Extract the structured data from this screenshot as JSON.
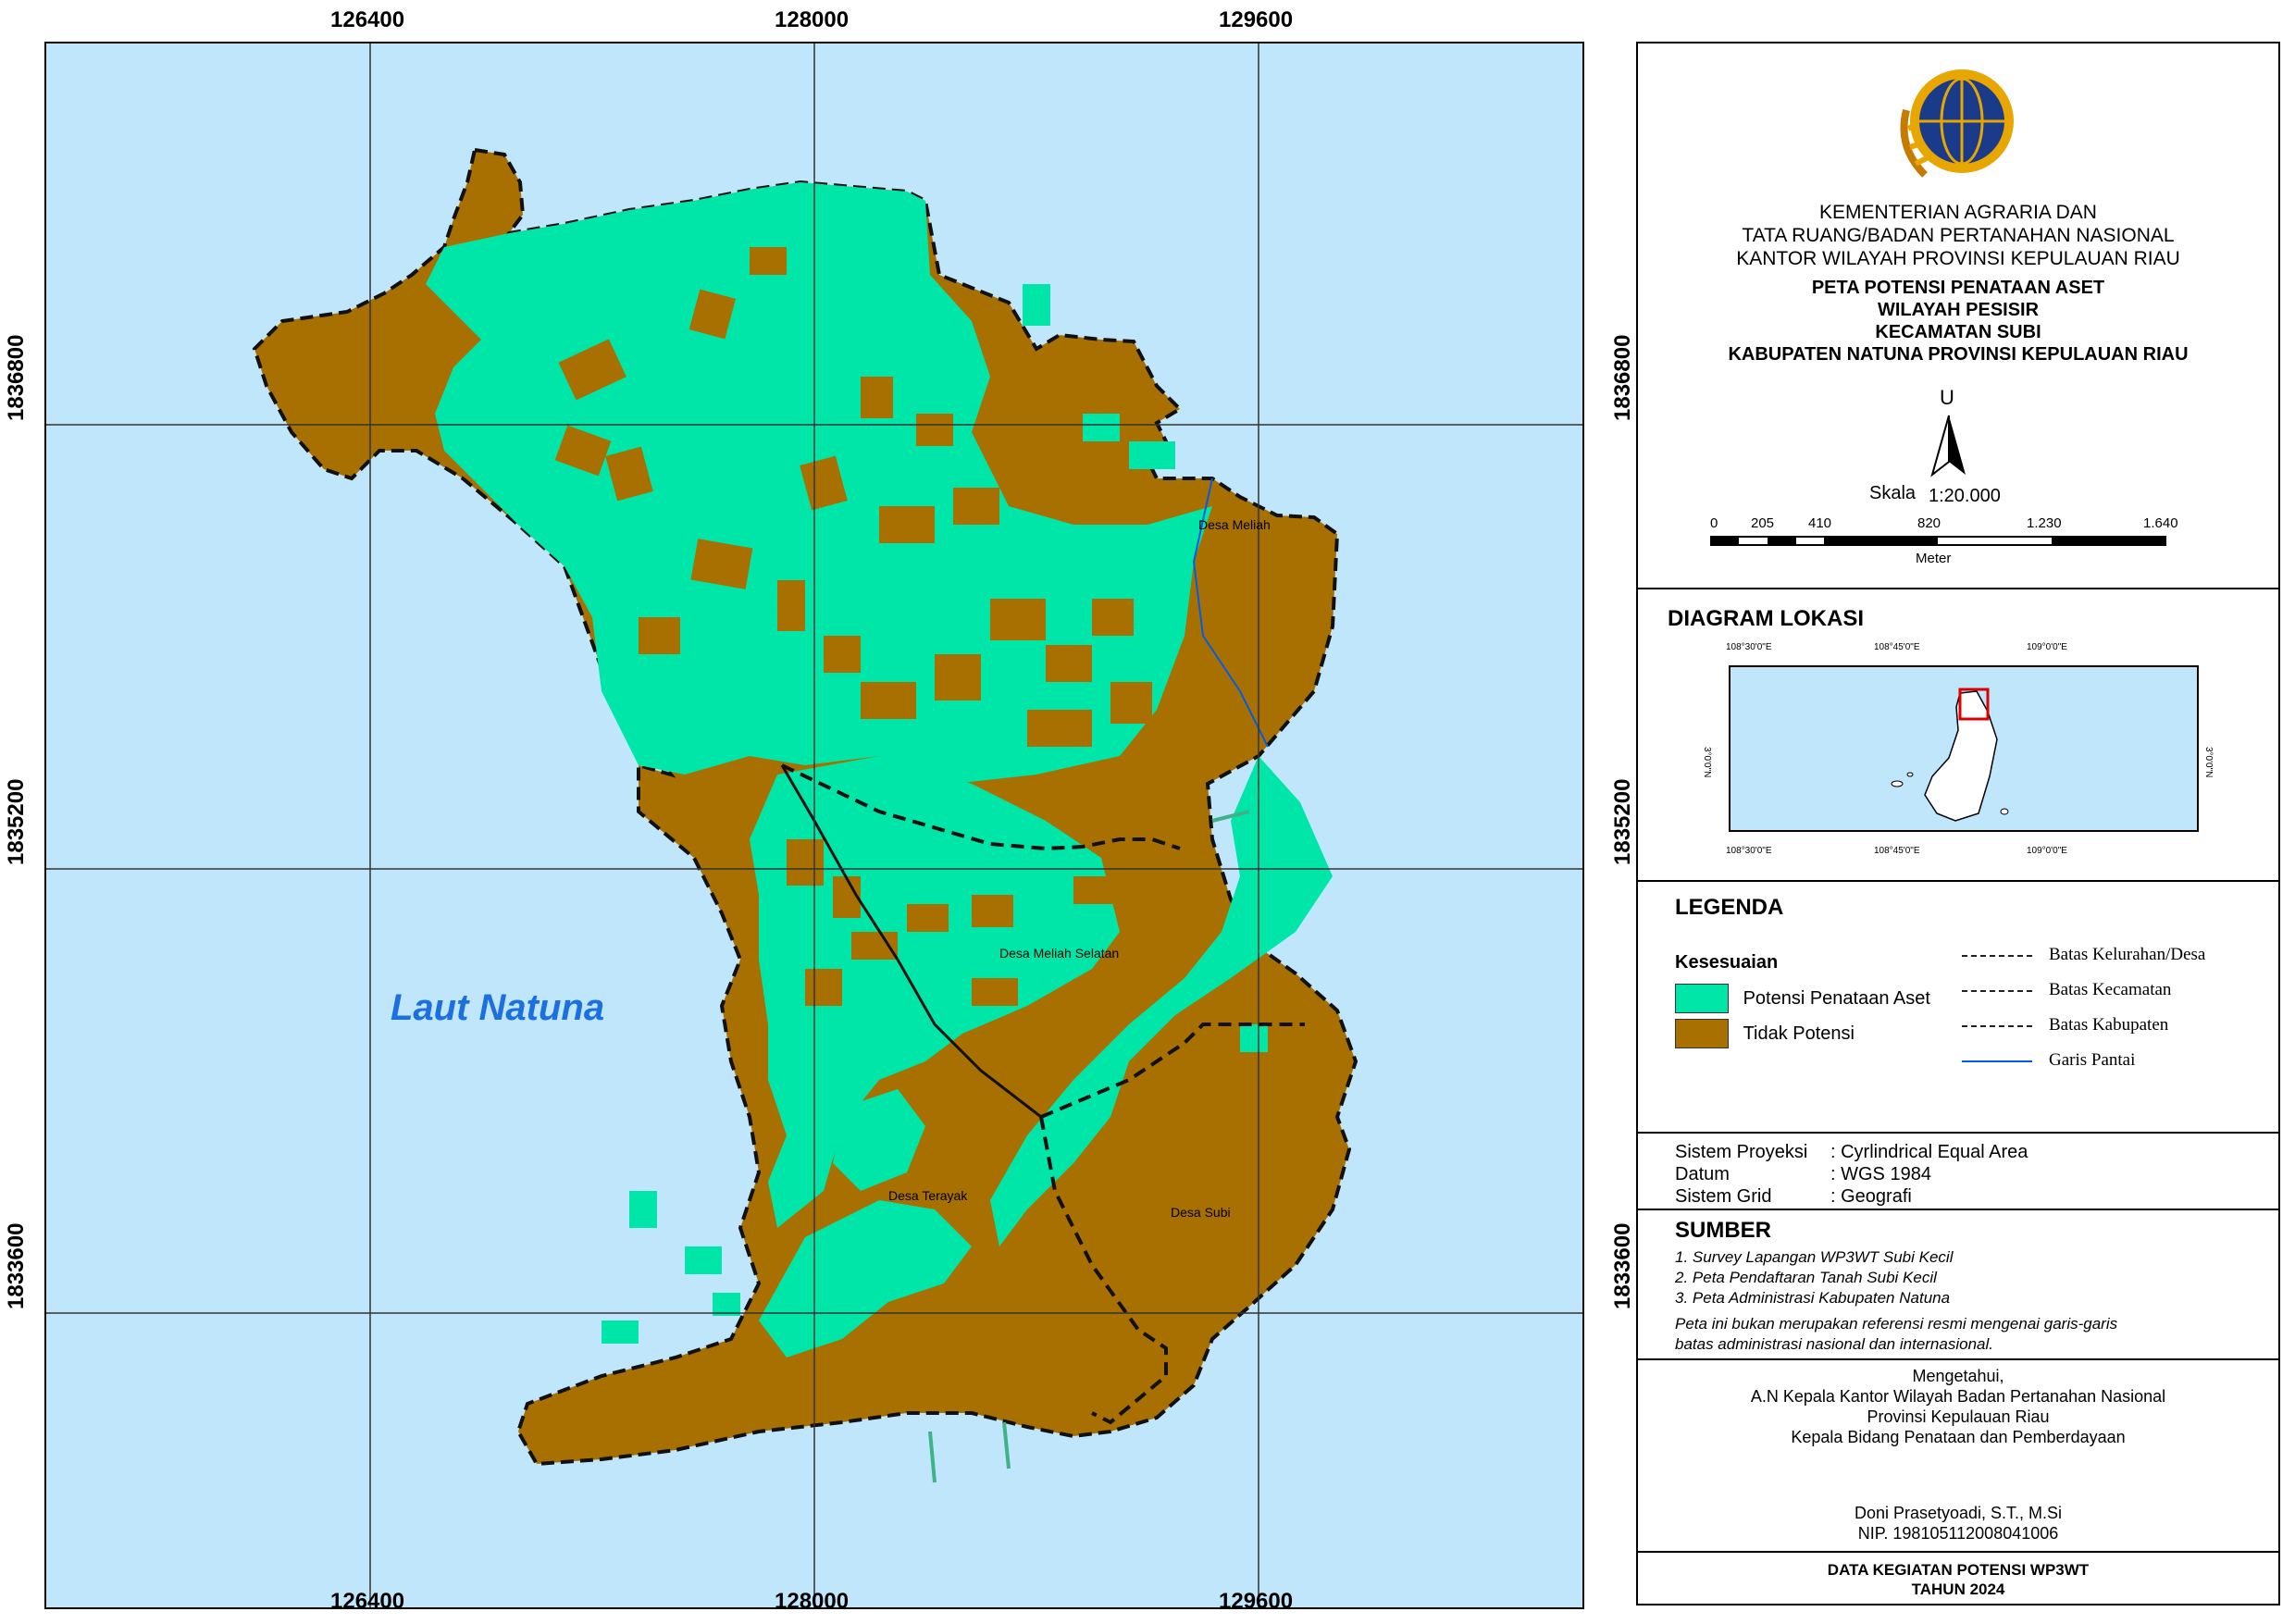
{
  "map": {
    "sea_label": "Laut Natuna",
    "village_labels": [
      "Desa Meliah",
      "Desa Meliah Selatan",
      "Desa Terayak",
      "Desa Subi"
    ],
    "x_ticks": [
      "126400",
      "128000",
      "129600"
    ],
    "y_ticks": [
      "1836800",
      "1835200",
      "1833600"
    ],
    "colors": {
      "sea": "#bfe6fb",
      "potensi": "#00e6a8",
      "tidak": "#a87000",
      "coast": "#005ce6"
    }
  },
  "header": {
    "logo_icon": "bpn-logo-icon",
    "org_lines": [
      "KEMENTERIAN AGRARIA DAN",
      "TATA RUANG/BADAN PERTANAHAN NASIONAL",
      "KANTOR WILAYAH PROVINSI KEPULAUAN  RIAU"
    ],
    "title_lines": [
      "PETA POTENSI PENATAAN ASET",
      "WILAYAH PESISIR",
      "KECAMATAN SUBI",
      "KABUPATEN NATUNA PROVINSI KEPULAUAN RIAU"
    ],
    "north_label": "U",
    "north_icon": "north-arrow-icon",
    "scale_label": "Skala",
    "scale_value": "1:20.000",
    "scale_ticks": [
      "0",
      "205",
      "410",
      "820",
      "1.230",
      "1.640"
    ],
    "scale_unit": "Meter"
  },
  "location_diagram": {
    "title": "DIAGRAM LOKASI",
    "top_labels": [
      "108°30'0\"E",
      "108°45'0\"E",
      "109°0'0\"E"
    ],
    "bottom_labels": [
      "108°30'0\"E",
      "108°45'0\"E",
      "109°0'0\"E"
    ],
    "side_label": "3°0'0\"N"
  },
  "legend": {
    "title": "LEGENDA",
    "subtitle": "Kesesuaian",
    "items": [
      "Potensi Penataan Aset",
      "Tidak Potensi"
    ],
    "line_items": [
      "Batas Kelurahan/Desa",
      "Batas Kecamatan",
      "Batas Kabupaten",
      "Garis Pantai"
    ]
  },
  "projection": {
    "rows": [
      {
        "k": "Sistem Proyeksi",
        "v": ": Cyrlindrical Equal Area"
      },
      {
        "k": "Datum",
        "v": ": WGS 1984"
      },
      {
        "k": "Sistem Grid",
        "v": ": Geografi"
      }
    ]
  },
  "sources": {
    "title": "SUMBER",
    "items": [
      "1. Survey Lapangan WP3WT Subi Kecil",
      "2. Peta Pendaftaran Tanah Subi Kecil",
      "3. Peta Administrasi Kabupaten Natuna"
    ],
    "disclaimer_lines": [
      "Peta ini bukan merupakan referensi resmi mengenai garis-garis",
      "batas administrasi nasional dan internasional."
    ]
  },
  "approval": {
    "lines": [
      "Mengetahui,",
      "A.N Kepala Kantor Wilayah Badan Pertanahan Nasional",
      "Provinsi Kepulauan Riau",
      "Kepala Bidang Penataan dan Pemberdayaan"
    ],
    "name": "Doni Prasetyoadi, S.T., M.Si",
    "nip": "NIP. 198105112008041006"
  },
  "footer": {
    "lines": [
      "DATA KEGIATAN  POTENSI  WP3WT",
      "TAHUN 2024"
    ]
  }
}
